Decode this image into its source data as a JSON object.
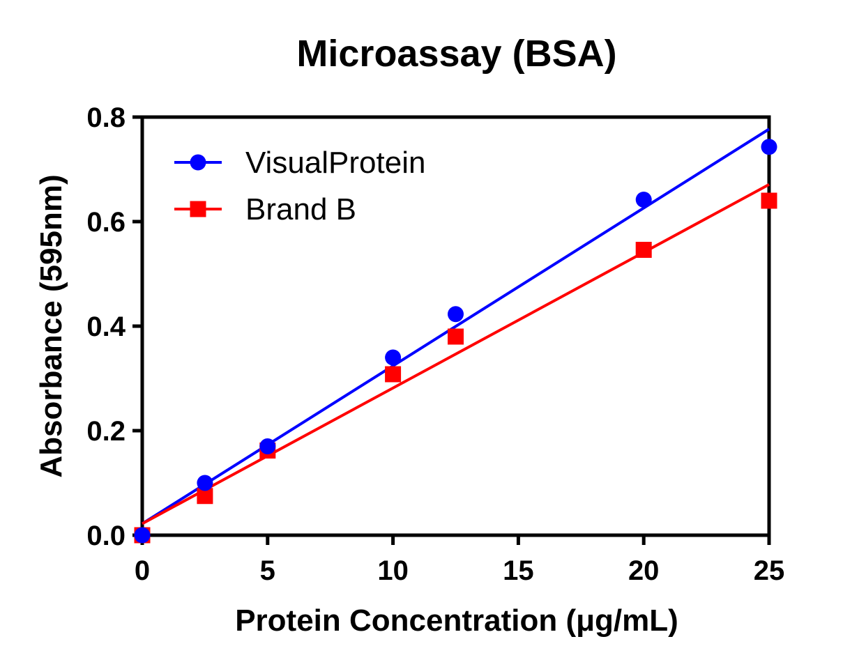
{
  "chart_data": {
    "type": "scatter",
    "title": "Microassay (BSA)",
    "xlabel": "Protein Concentration (μg/mL)",
    "ylabel": "Absorbance (595nm)",
    "xlim": [
      0,
      25
    ],
    "ylim": [
      0,
      0.8
    ],
    "xticks": [
      0,
      5,
      10,
      15,
      20,
      25
    ],
    "xtick_labels": [
      "0",
      "5",
      "10",
      "15",
      "20",
      "25"
    ],
    "yticks": [
      0,
      0.2,
      0.4,
      0.6,
      0.8
    ],
    "ytick_labels": [
      "0.0",
      "0.2",
      "0.4",
      "0.6",
      "0.8"
    ],
    "grid": false,
    "legend_position": "top-left",
    "series": [
      {
        "name": "VisualProtein",
        "color": "#0000ff",
        "marker": "circle",
        "x": [
          0,
          2.5,
          5,
          10,
          12.5,
          20,
          25
        ],
        "y": [
          0.0,
          0.1,
          0.17,
          0.34,
          0.423,
          0.642,
          0.743
        ],
        "fit_line": {
          "x": [
            0,
            25
          ],
          "y": [
            0.022,
            0.777
          ]
        }
      },
      {
        "name": "Brand B",
        "color": "#ff0000",
        "marker": "square",
        "x": [
          0,
          2.5,
          5,
          10,
          12.5,
          20,
          25
        ],
        "y": [
          0.0,
          0.075,
          0.162,
          0.308,
          0.38,
          0.546,
          0.64
        ],
        "fit_line": {
          "x": [
            0,
            25
          ],
          "y": [
            0.022,
            0.671
          ]
        }
      }
    ]
  }
}
